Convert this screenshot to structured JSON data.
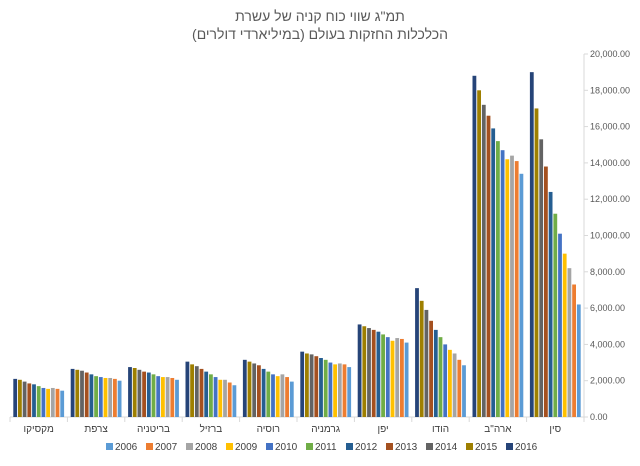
{
  "chart_data": {
    "type": "bar",
    "title": "תמ\"ג שווי כוח קניה של עשרת",
    "subtitle": "הכלכלות החזקות בעולם (במיליארדי דולרים)",
    "xlabel": "",
    "ylabel": "",
    "ylim": [
      0,
      20000
    ],
    "yticks": [
      "0.00",
      "2,000.00",
      "4,000.00",
      "6,000.00",
      "8,000.00",
      "10,000.00",
      "12,000.00",
      "14,000.00",
      "16,000.00",
      "18,000.00",
      "20,000.00"
    ],
    "y_axis_side": "right",
    "grid": false,
    "legend_position": "bottom",
    "categories": [
      "סין",
      "ארה\"ב",
      "הודו",
      "יפן",
      "גרמניה",
      "רוסיה",
      "ברזיל",
      "בריטניה",
      "צרפת",
      "מקסיקו"
    ],
    "series": [
      {
        "name": "2016",
        "color": "#264478",
        "values": [
          19000,
          18800,
          7100,
          5100,
          3600,
          3150,
          3050,
          2750,
          2650,
          2100
        ]
      },
      {
        "name": "2015",
        "color": "#9E7F00",
        "values": [
          17000,
          18000,
          6400,
          5000,
          3500,
          3050,
          2900,
          2700,
          2600,
          2050
        ]
      },
      {
        "name": "2014",
        "color": "#636363",
        "values": [
          15300,
          17200,
          5900,
          4900,
          3450,
          2950,
          2800,
          2600,
          2550,
          1950
        ]
      },
      {
        "name": "2013",
        "color": "#A4501F",
        "values": [
          13800,
          16600,
          5300,
          4800,
          3350,
          2850,
          2650,
          2500,
          2450,
          1850
        ]
      },
      {
        "name": "2012",
        "color": "#255E91",
        "values": [
          12400,
          15900,
          4800,
          4700,
          3250,
          2650,
          2500,
          2450,
          2350,
          1800
        ]
      },
      {
        "name": "2011",
        "color": "#70AD47",
        "values": [
          11200,
          15200,
          4400,
          4550,
          3150,
          2500,
          2350,
          2350,
          2250,
          1700
        ]
      },
      {
        "name": "2010",
        "color": "#4472C4",
        "values": [
          10100,
          14700,
          4000,
          4400,
          3000,
          2350,
          2200,
          2250,
          2200,
          1600
        ]
      },
      {
        "name": "2009",
        "color": "#FFC000",
        "values": [
          9000,
          14200,
          3700,
          4200,
          2900,
          2250,
          2050,
          2200,
          2150,
          1550
        ]
      },
      {
        "name": "2008",
        "color": "#A5A5A5",
        "values": [
          8200,
          14400,
          3500,
          4350,
          2950,
          2350,
          2050,
          2200,
          2150,
          1600
        ]
      },
      {
        "name": "2007",
        "color": "#ED7D31",
        "values": [
          7300,
          14100,
          3150,
          4300,
          2900,
          2200,
          1900,
          2150,
          2100,
          1550
        ]
      },
      {
        "name": "2006",
        "color": "#5B9BD5",
        "values": [
          6200,
          13400,
          2850,
          4100,
          2750,
          1950,
          1750,
          2050,
          2000,
          1450
        ]
      }
    ]
  }
}
